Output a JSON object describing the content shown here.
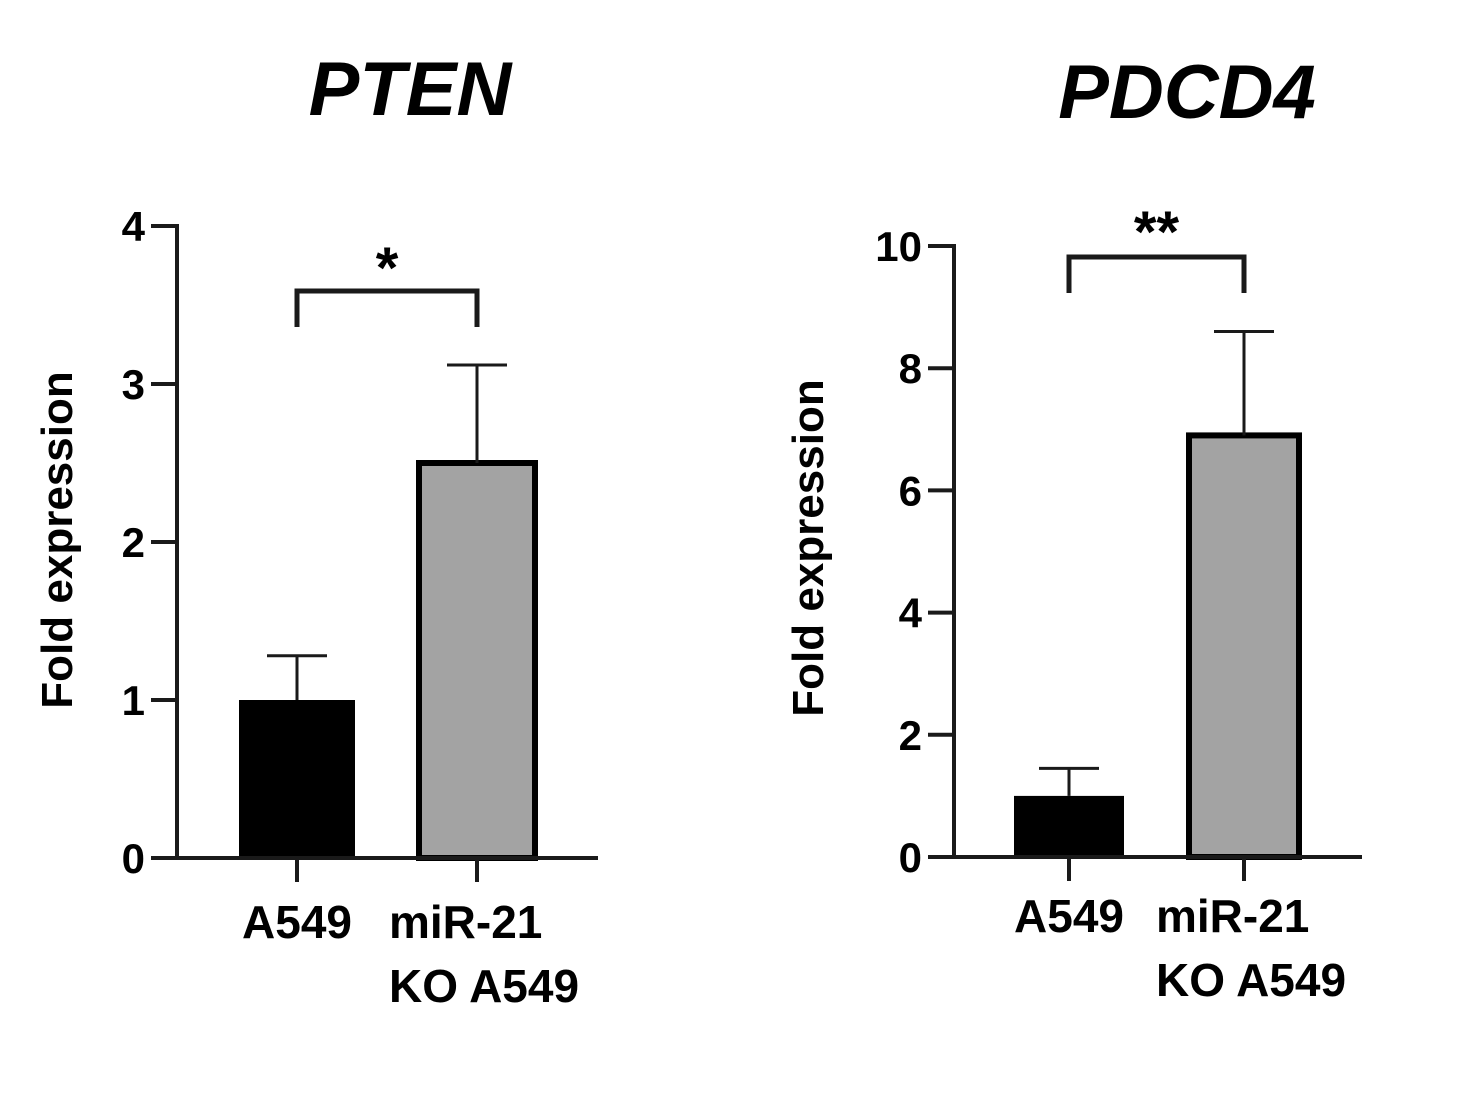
{
  "colors": {
    "axis": "#1a1a1a",
    "bar_control": "#000000",
    "bar_ko": "#a3a3a3",
    "background": "#ffffff"
  },
  "chart_data": [
    {
      "type": "bar",
      "title": "PTEN",
      "ylabel": "Fold expression",
      "xlabel": "",
      "ylim": [
        0,
        4
      ],
      "yticks": [
        "0",
        "1",
        "2",
        "3",
        "4"
      ],
      "categories": [
        [
          "A549"
        ],
        [
          "miR-21",
          "KO A549"
        ]
      ],
      "values": [
        1.0,
        2.5
      ],
      "error_upper": [
        0.28,
        0.62
      ],
      "significance": "*",
      "bar_colors": [
        "#000000",
        "#a3a3a3"
      ],
      "grid": false,
      "legend": "none"
    },
    {
      "type": "bar",
      "title": "PDCD4",
      "ylabel": "Fold expression",
      "xlabel": "",
      "ylim": [
        0,
        10
      ],
      "yticks": [
        "0",
        "2",
        "4",
        "6",
        "8",
        "10"
      ],
      "categories": [
        [
          "A549"
        ],
        [
          "miR-21",
          "KO A549"
        ]
      ],
      "values": [
        1.0,
        6.9
      ],
      "error_upper": [
        0.45,
        1.7
      ],
      "significance": "**",
      "bar_colors": [
        "#000000",
        "#a3a3a3"
      ],
      "grid": false,
      "legend": "none"
    }
  ]
}
